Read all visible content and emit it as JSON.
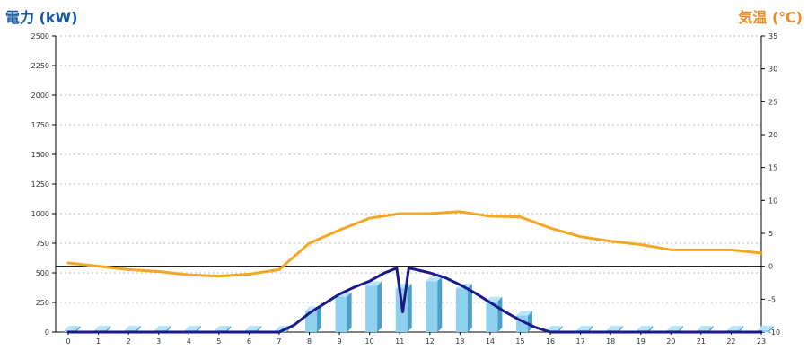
{
  "chart_data": {
    "type": "bar",
    "left_axis_label": "電力 (kW)",
    "right_axis_label": "気温 (℃)",
    "categories": [
      "0",
      "1",
      "2",
      "3",
      "4",
      "5",
      "6",
      "7",
      "8",
      "9",
      "10",
      "11",
      "12",
      "13",
      "14",
      "15",
      "16",
      "17",
      "18",
      "19",
      "20",
      "21",
      "22",
      "23"
    ],
    "left_ylim": [
      0,
      2500
    ],
    "left_ticks": [
      0,
      250,
      500,
      750,
      1000,
      1250,
      1500,
      1750,
      2000,
      2250,
      2500
    ],
    "right_ylim": [
      -10,
      35
    ],
    "right_ticks": [
      -10,
      -5,
      0,
      5,
      10,
      15,
      20,
      25,
      30,
      35
    ],
    "grid": true,
    "series": [
      {
        "kind": "bar",
        "axis": "left",
        "values": [
          0,
          0,
          0,
          0,
          0,
          0,
          0,
          0,
          180,
          300,
          390,
          370,
          430,
          370,
          260,
          140,
          0,
          0,
          0,
          0,
          0,
          0,
          0,
          0
        ]
      },
      {
        "kind": "line",
        "axis": "left",
        "x": [
          0,
          1,
          2,
          3,
          4,
          5,
          6,
          7,
          7.5,
          8,
          8.5,
          9,
          9.5,
          10,
          10.5,
          10.9,
          11.1,
          11.3,
          11.5,
          12,
          12.5,
          13,
          13.5,
          14,
          14.5,
          15,
          15.5,
          16,
          17,
          18,
          19,
          20,
          21,
          22,
          23
        ],
        "values": [
          0,
          0,
          0,
          0,
          0,
          0,
          0,
          0,
          60,
          160,
          240,
          320,
          380,
          430,
          500,
          540,
          170,
          540,
          530,
          500,
          460,
          400,
          330,
          250,
          170,
          100,
          40,
          0,
          0,
          0,
          0,
          0,
          0,
          0,
          0
        ]
      },
      {
        "kind": "line",
        "axis": "right",
        "x": [
          0,
          1,
          2,
          3,
          4,
          5,
          6,
          7,
          8,
          9,
          10,
          11,
          12,
          13,
          14,
          15,
          16,
          17,
          18,
          19,
          20,
          21,
          22,
          23
        ],
        "values": [
          0.5,
          0,
          -0.5,
          -0.8,
          -1.3,
          -1.5,
          -1.2,
          -0.5,
          3.5,
          5.5,
          7.3,
          8.0,
          8.0,
          8.3,
          7.6,
          7.5,
          5.8,
          4.5,
          3.8,
          3.3,
          2.5,
          2.5,
          2.5,
          2.0
        ]
      }
    ],
    "colors": {
      "bar_front": "#8fd0ee",
      "bar_side": "#4b9fc8",
      "bar_top": "#b8e4f7",
      "power_line": "#1a1a8a",
      "temp_line": "#f5a623",
      "grid": "#bbbbbb",
      "zero_line": "#000000"
    }
  }
}
